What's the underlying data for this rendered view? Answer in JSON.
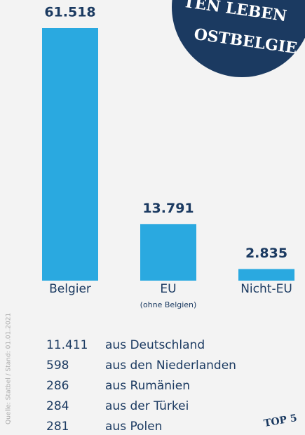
{
  "chart_data": {
    "type": "bar",
    "categories": [
      "Belgier",
      "EU",
      "Nicht-EU"
    ],
    "values": [
      61518,
      13791,
      2835
    ],
    "value_labels": [
      "61.518",
      "13.791",
      "2.835"
    ],
    "category_notes": [
      null,
      "(ohne Belgien)",
      null
    ],
    "color": "#2aa9e0"
  },
  "badge": {
    "lines": [
      "TEN LEBEN",
      "OSTBELGIE"
    ]
  },
  "source": "Quelle: Statbel / Stand: 01.01.2021",
  "list": {
    "rows": [
      [
        "11.411",
        "aus Deutschland"
      ],
      [
        "598",
        "aus den Niederlanden"
      ],
      [
        "286",
        "aus Rumänien"
      ],
      [
        "284",
        "aus der Türkei"
      ],
      [
        "281",
        "aus Polen"
      ]
    ],
    "tag": "TOP 5"
  }
}
